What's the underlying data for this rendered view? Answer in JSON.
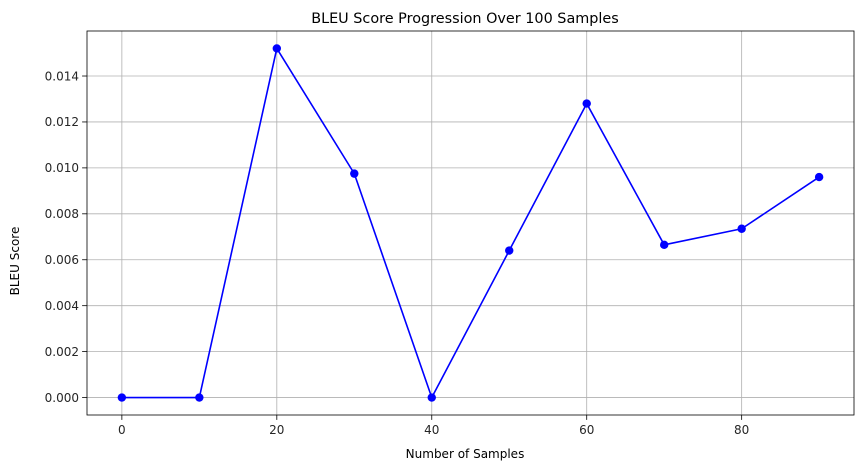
{
  "chart_data": {
    "type": "line",
    "title": "BLEU Score Progression Over 100 Samples",
    "xlabel": "Number of Samples",
    "ylabel": "BLEU Score",
    "xlim": [
      -4.5,
      94.5
    ],
    "ylim": [
      -0.00076,
      0.01596
    ],
    "xticks": [
      0,
      20,
      40,
      60,
      80
    ],
    "xtick_labels": [
      "0",
      "20",
      "40",
      "60",
      "80"
    ],
    "yticks": [
      0.0,
      0.002,
      0.004,
      0.006,
      0.008,
      0.01,
      0.012,
      0.014
    ],
    "ytick_labels": [
      "0.000",
      "0.002",
      "0.004",
      "0.006",
      "0.008",
      "0.010",
      "0.012",
      "0.014"
    ],
    "grid": true,
    "series": [
      {
        "color": "#0000ff",
        "marker": "circle",
        "x": [
          0,
          10,
          20,
          30,
          40,
          50,
          60,
          70,
          80,
          90
        ],
        "y": [
          0.0,
          0.0,
          0.0152,
          0.00975,
          0.0,
          0.0064,
          0.0128,
          0.00665,
          0.00735,
          0.0096
        ]
      }
    ]
  }
}
